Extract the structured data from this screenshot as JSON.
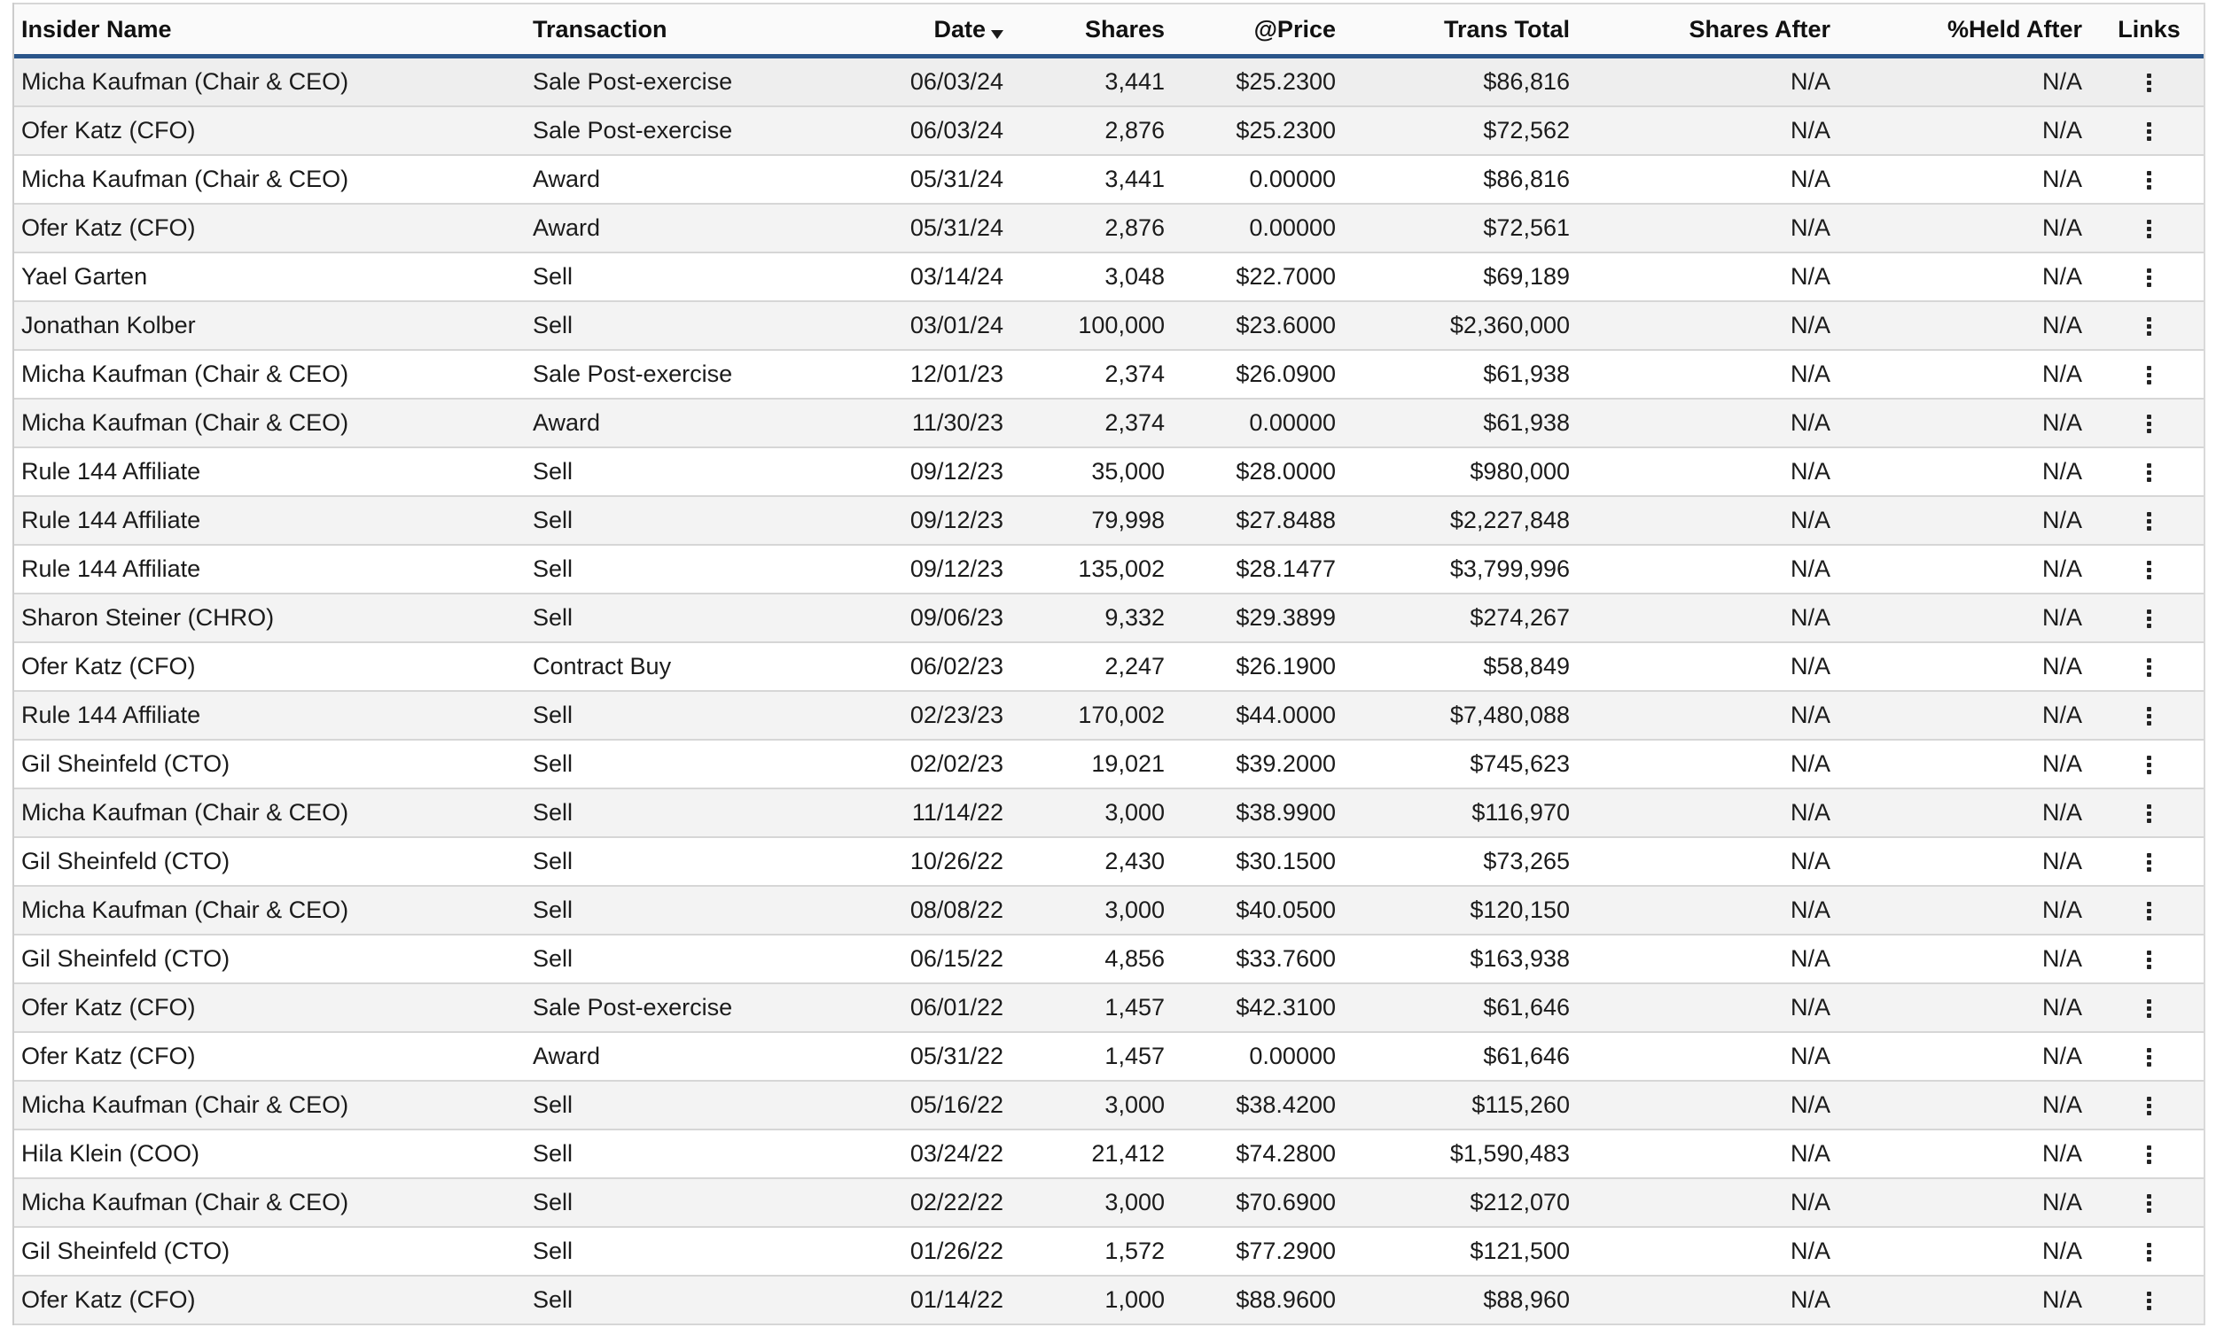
{
  "table": {
    "name": "insider-transactions-table",
    "columns": [
      {
        "label": "Insider Name",
        "align": "left",
        "sortable": true,
        "sorted": null
      },
      {
        "label": "Transaction",
        "align": "left",
        "sortable": true,
        "sorted": null
      },
      {
        "label": "Date",
        "align": "right",
        "sortable": true,
        "sorted": "desc"
      },
      {
        "label": "Shares",
        "align": "right",
        "sortable": true,
        "sorted": null
      },
      {
        "label": "@Price",
        "align": "right",
        "sortable": true,
        "sorted": null
      },
      {
        "label": "Trans Total",
        "align": "right",
        "sortable": true,
        "sorted": null
      },
      {
        "label": "Shares After",
        "align": "right",
        "sortable": true,
        "sorted": null
      },
      {
        "label": "%Held After",
        "align": "right",
        "sortable": true,
        "sorted": null
      },
      {
        "label": "Links",
        "align": "center",
        "sortable": false,
        "sorted": null
      }
    ],
    "highlighted_row_index": 0,
    "rows": [
      {
        "insider": "Micha Kaufman (Chair & CEO)",
        "transaction": "Sale Post-exercise",
        "date": "06/03/24",
        "shares": "3,441",
        "price": "$25.2300",
        "trans_total": "$86,816",
        "shares_after": "N/A",
        "pct_held_after": "N/A"
      },
      {
        "insider": "Ofer Katz (CFO)",
        "transaction": "Sale Post-exercise",
        "date": "06/03/24",
        "shares": "2,876",
        "price": "$25.2300",
        "trans_total": "$72,562",
        "shares_after": "N/A",
        "pct_held_after": "N/A"
      },
      {
        "insider": "Micha Kaufman (Chair & CEO)",
        "transaction": "Award",
        "date": "05/31/24",
        "shares": "3,441",
        "price": "0.00000",
        "trans_total": "$86,816",
        "shares_after": "N/A",
        "pct_held_after": "N/A"
      },
      {
        "insider": "Ofer Katz (CFO)",
        "transaction": "Award",
        "date": "05/31/24",
        "shares": "2,876",
        "price": "0.00000",
        "trans_total": "$72,561",
        "shares_after": "N/A",
        "pct_held_after": "N/A"
      },
      {
        "insider": "Yael Garten",
        "transaction": "Sell",
        "date": "03/14/24",
        "shares": "3,048",
        "price": "$22.7000",
        "trans_total": "$69,189",
        "shares_after": "N/A",
        "pct_held_after": "N/A"
      },
      {
        "insider": "Jonathan Kolber",
        "transaction": "Sell",
        "date": "03/01/24",
        "shares": "100,000",
        "price": "$23.6000",
        "trans_total": "$2,360,000",
        "shares_after": "N/A",
        "pct_held_after": "N/A"
      },
      {
        "insider": "Micha Kaufman (Chair & CEO)",
        "transaction": "Sale Post-exercise",
        "date": "12/01/23",
        "shares": "2,374",
        "price": "$26.0900",
        "trans_total": "$61,938",
        "shares_after": "N/A",
        "pct_held_after": "N/A"
      },
      {
        "insider": "Micha Kaufman (Chair & CEO)",
        "transaction": "Award",
        "date": "11/30/23",
        "shares": "2,374",
        "price": "0.00000",
        "trans_total": "$61,938",
        "shares_after": "N/A",
        "pct_held_after": "N/A"
      },
      {
        "insider": "Rule 144 Affiliate",
        "transaction": "Sell",
        "date": "09/12/23",
        "shares": "35,000",
        "price": "$28.0000",
        "trans_total": "$980,000",
        "shares_after": "N/A",
        "pct_held_after": "N/A"
      },
      {
        "insider": "Rule 144 Affiliate",
        "transaction": "Sell",
        "date": "09/12/23",
        "shares": "79,998",
        "price": "$27.8488",
        "trans_total": "$2,227,848",
        "shares_after": "N/A",
        "pct_held_after": "N/A"
      },
      {
        "insider": "Rule 144 Affiliate",
        "transaction": "Sell",
        "date": "09/12/23",
        "shares": "135,002",
        "price": "$28.1477",
        "trans_total": "$3,799,996",
        "shares_after": "N/A",
        "pct_held_after": "N/A"
      },
      {
        "insider": "Sharon Steiner (CHRO)",
        "transaction": "Sell",
        "date": "09/06/23",
        "shares": "9,332",
        "price": "$29.3899",
        "trans_total": "$274,267",
        "shares_after": "N/A",
        "pct_held_after": "N/A"
      },
      {
        "insider": "Ofer Katz (CFO)",
        "transaction": "Contract Buy",
        "date": "06/02/23",
        "shares": "2,247",
        "price": "$26.1900",
        "trans_total": "$58,849",
        "shares_after": "N/A",
        "pct_held_after": "N/A"
      },
      {
        "insider": "Rule 144 Affiliate",
        "transaction": "Sell",
        "date": "02/23/23",
        "shares": "170,002",
        "price": "$44.0000",
        "trans_total": "$7,480,088",
        "shares_after": "N/A",
        "pct_held_after": "N/A"
      },
      {
        "insider": "Gil Sheinfeld (CTO)",
        "transaction": "Sell",
        "date": "02/02/23",
        "shares": "19,021",
        "price": "$39.2000",
        "trans_total": "$745,623",
        "shares_after": "N/A",
        "pct_held_after": "N/A"
      },
      {
        "insider": "Micha Kaufman (Chair & CEO)",
        "transaction": "Sell",
        "date": "11/14/22",
        "shares": "3,000",
        "price": "$38.9900",
        "trans_total": "$116,970",
        "shares_after": "N/A",
        "pct_held_after": "N/A"
      },
      {
        "insider": "Gil Sheinfeld (CTO)",
        "transaction": "Sell",
        "date": "10/26/22",
        "shares": "2,430",
        "price": "$30.1500",
        "trans_total": "$73,265",
        "shares_after": "N/A",
        "pct_held_after": "N/A"
      },
      {
        "insider": "Micha Kaufman (Chair & CEO)",
        "transaction": "Sell",
        "date": "08/08/22",
        "shares": "3,000",
        "price": "$40.0500",
        "trans_total": "$120,150",
        "shares_after": "N/A",
        "pct_held_after": "N/A"
      },
      {
        "insider": "Gil Sheinfeld (CTO)",
        "transaction": "Sell",
        "date": "06/15/22",
        "shares": "4,856",
        "price": "$33.7600",
        "trans_total": "$163,938",
        "shares_after": "N/A",
        "pct_held_after": "N/A"
      },
      {
        "insider": "Ofer Katz (CFO)",
        "transaction": "Sale Post-exercise",
        "date": "06/01/22",
        "shares": "1,457",
        "price": "$42.3100",
        "trans_total": "$61,646",
        "shares_after": "N/A",
        "pct_held_after": "N/A"
      },
      {
        "insider": "Ofer Katz (CFO)",
        "transaction": "Award",
        "date": "05/31/22",
        "shares": "1,457",
        "price": "0.00000",
        "trans_total": "$61,646",
        "shares_after": "N/A",
        "pct_held_after": "N/A"
      },
      {
        "insider": "Micha Kaufman (Chair & CEO)",
        "transaction": "Sell",
        "date": "05/16/22",
        "shares": "3,000",
        "price": "$38.4200",
        "trans_total": "$115,260",
        "shares_after": "N/A",
        "pct_held_after": "N/A"
      },
      {
        "insider": "Hila Klein (COO)",
        "transaction": "Sell",
        "date": "03/24/22",
        "shares": "21,412",
        "price": "$74.2800",
        "trans_total": "$1,590,483",
        "shares_after": "N/A",
        "pct_held_after": "N/A"
      },
      {
        "insider": "Micha Kaufman (Chair & CEO)",
        "transaction": "Sell",
        "date": "02/22/22",
        "shares": "3,000",
        "price": "$70.6900",
        "trans_total": "$212,070",
        "shares_after": "N/A",
        "pct_held_after": "N/A"
      },
      {
        "insider": "Gil Sheinfeld (CTO)",
        "transaction": "Sell",
        "date": "01/26/22",
        "shares": "1,572",
        "price": "$77.2900",
        "trans_total": "$121,500",
        "shares_after": "N/A",
        "pct_held_after": "N/A"
      },
      {
        "insider": "Ofer Katz (CFO)",
        "transaction": "Sell",
        "date": "01/14/22",
        "shares": "1,000",
        "price": "$88.9600",
        "trans_total": "$88,960",
        "shares_after": "N/A",
        "pct_held_after": "N/A"
      }
    ]
  },
  "icons": {
    "sort_desc": "sort-desc-icon",
    "links_menu": "kebab-menu-icon"
  },
  "colors": {
    "header_underline": "#2b568a",
    "row_border": "#d6d6d6",
    "header_bg": "#fafafa",
    "stripe_bg": "#f3f3f3",
    "highlight_bg": "#eeeeee",
    "text": "#1b1b1b"
  }
}
